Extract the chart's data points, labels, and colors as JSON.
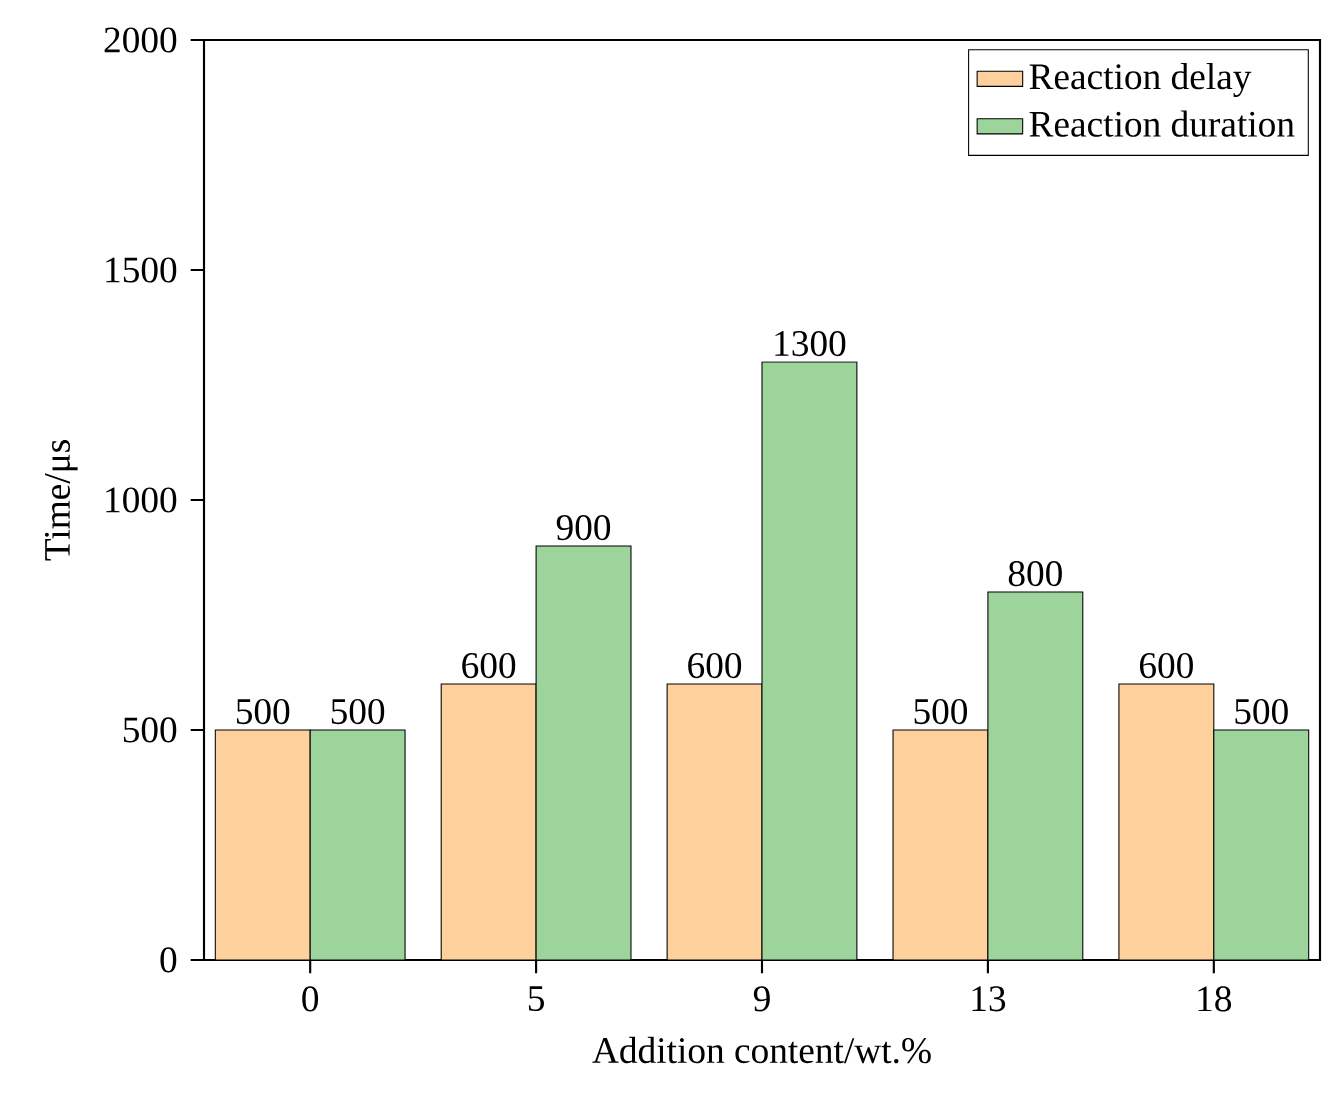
{
  "chart_data": {
    "type": "bar",
    "xlabel": "Addition content/wt.%",
    "ylabel": "Time/μs",
    "categories": [
      "0",
      "5",
      "9",
      "13",
      "18"
    ],
    "series": [
      {
        "name": "Reaction delay",
        "color": "#fdd09c",
        "values": [
          500,
          600,
          600,
          500,
          600
        ]
      },
      {
        "name": "Reaction duration",
        "color": "#9dd49c",
        "values": [
          500,
          900,
          1300,
          800,
          500
        ]
      }
    ],
    "ylim": [
      0,
      2000
    ],
    "yticks": [
      0,
      500,
      1000,
      1500,
      2000
    ],
    "data_labels": true,
    "legend": "top right",
    "grid": false
  }
}
